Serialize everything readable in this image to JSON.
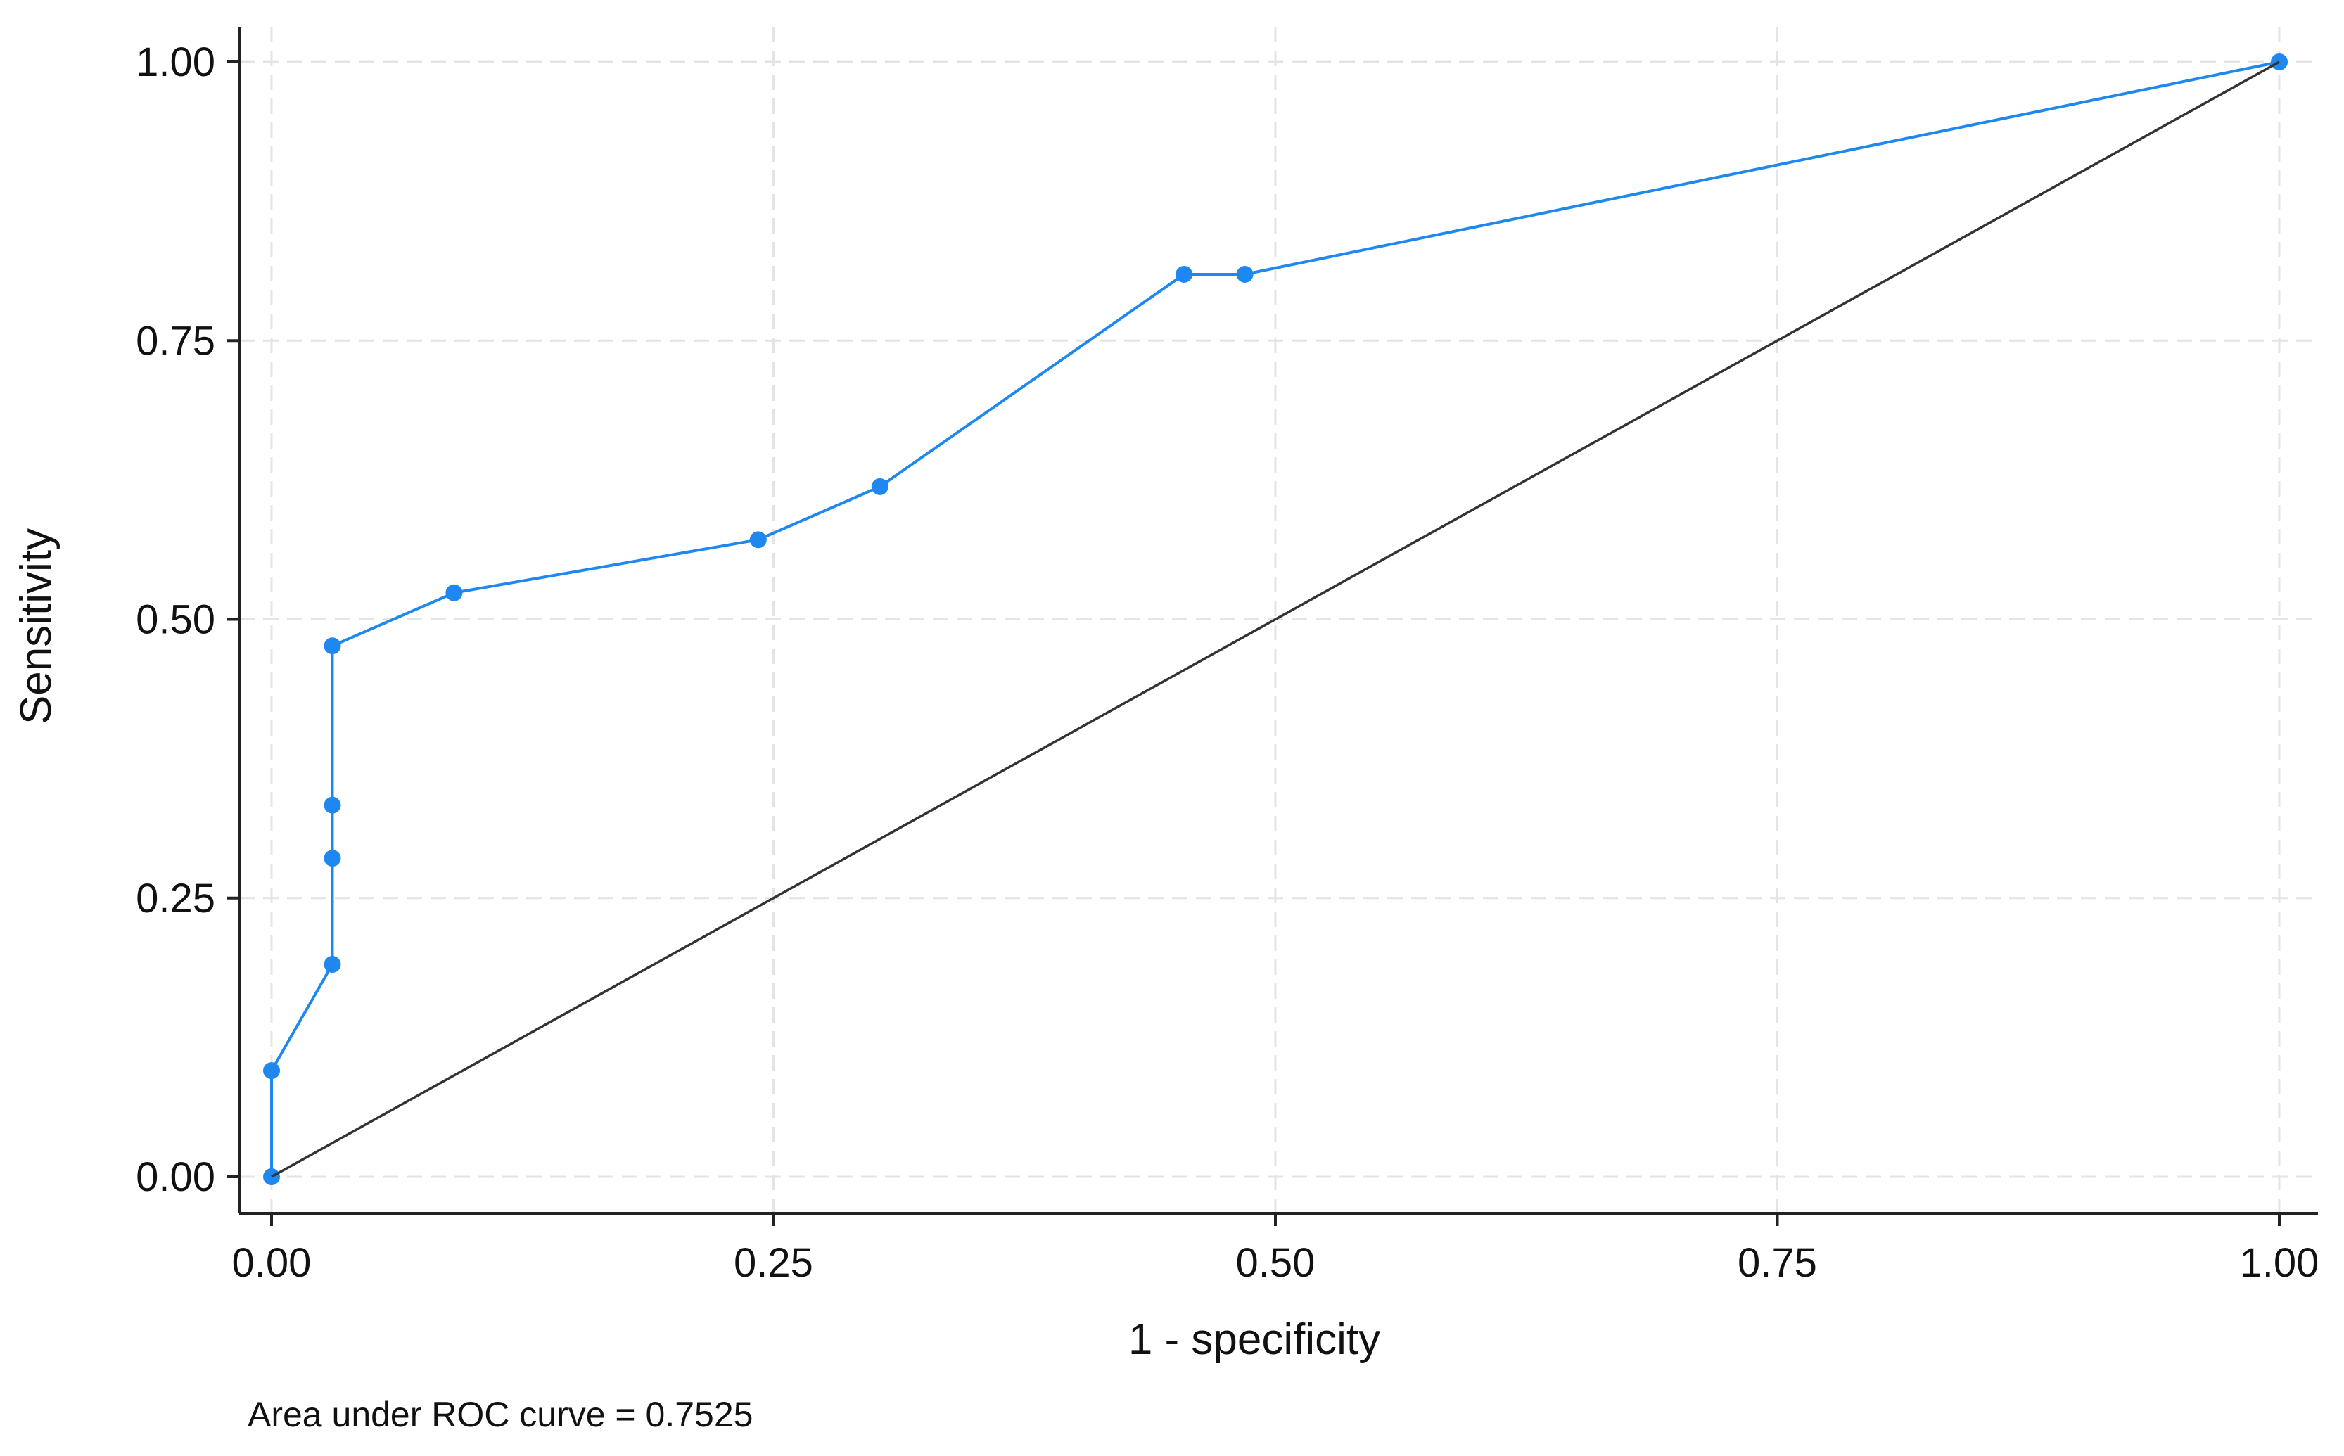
{
  "chart_data": {
    "type": "line",
    "xlabel": "1 - specificity",
    "ylabel": "Sensitivity",
    "xlim": [
      0,
      1
    ],
    "ylim": [
      0,
      1
    ],
    "x_ticks": [
      "0.00",
      "0.25",
      "0.50",
      "0.75",
      "1.00"
    ],
    "y_ticks": [
      "0.00",
      "0.25",
      "0.50",
      "0.75",
      "1.00"
    ],
    "grid": true,
    "legend": "none",
    "note": "Area under ROC curve = 0.7525",
    "series": [
      {
        "role": "roc-curve",
        "color": "#1e88f0",
        "markers": true,
        "x": [
          0,
          0,
          0.0303,
          0.0303,
          0.0303,
          0.0303,
          0.0909,
          0.2424,
          0.303,
          0.4545,
          0.4848,
          1.0
        ],
        "y": [
          0,
          0.0952,
          0.1905,
          0.2857,
          0.3333,
          0.4762,
          0.5238,
          0.5714,
          0.619,
          0.8095,
          0.8095,
          1.0
        ]
      },
      {
        "role": "reference-line",
        "color": "#333333",
        "markers": false,
        "x": [
          0,
          1
        ],
        "y": [
          0,
          1
        ]
      }
    ]
  }
}
